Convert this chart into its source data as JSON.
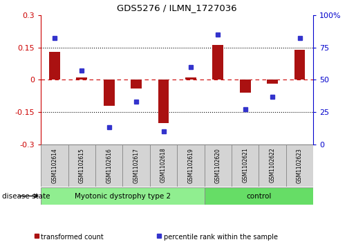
{
  "title": "GDS5276 / ILMN_1727036",
  "samples": [
    "GSM1102614",
    "GSM1102615",
    "GSM1102616",
    "GSM1102617",
    "GSM1102618",
    "GSM1102619",
    "GSM1102620",
    "GSM1102621",
    "GSM1102622",
    "GSM1102623"
  ],
  "transformed_count": [
    0.13,
    0.01,
    -0.12,
    -0.04,
    -0.2,
    0.01,
    0.16,
    -0.06,
    -0.02,
    0.14
  ],
  "percentile_rank": [
    82,
    57,
    13,
    33,
    10,
    60,
    85,
    27,
    37,
    82
  ],
  "bar_color": "#aa1111",
  "dot_color": "#3333cc",
  "ylim_left": [
    -0.3,
    0.3
  ],
  "ylim_right": [
    0,
    100
  ],
  "yticks_left": [
    -0.3,
    -0.15,
    0.0,
    0.15,
    0.3
  ],
  "yticks_right": [
    0,
    25,
    50,
    75,
    100
  ],
  "ytick_labels_left": [
    "-0.3",
    "-0.15",
    "0",
    "0.15",
    "0.3"
  ],
  "ytick_labels_right": [
    "0",
    "25",
    "50",
    "75",
    "100%"
  ],
  "hlines_dotted": [
    0.15,
    -0.15
  ],
  "hline_dashed": 0.0,
  "disease_groups": [
    {
      "label": "Myotonic dystrophy type 2",
      "start": 0,
      "end": 6,
      "color": "#90ee90"
    },
    {
      "label": "control",
      "start": 6,
      "end": 10,
      "color": "#66dd66"
    }
  ],
  "disease_state_label": "disease state",
  "legend_items": [
    {
      "color": "#aa1111",
      "label": "transformed count"
    },
    {
      "color": "#3333cc",
      "label": "percentile rank within the sample"
    }
  ],
  "background_color": "#ffffff",
  "tick_label_color_left": "#cc0000",
  "tick_label_color_right": "#0000cc",
  "bar_width": 0.4,
  "sample_box_color": "#d4d4d4",
  "sample_box_edge": "#888888"
}
